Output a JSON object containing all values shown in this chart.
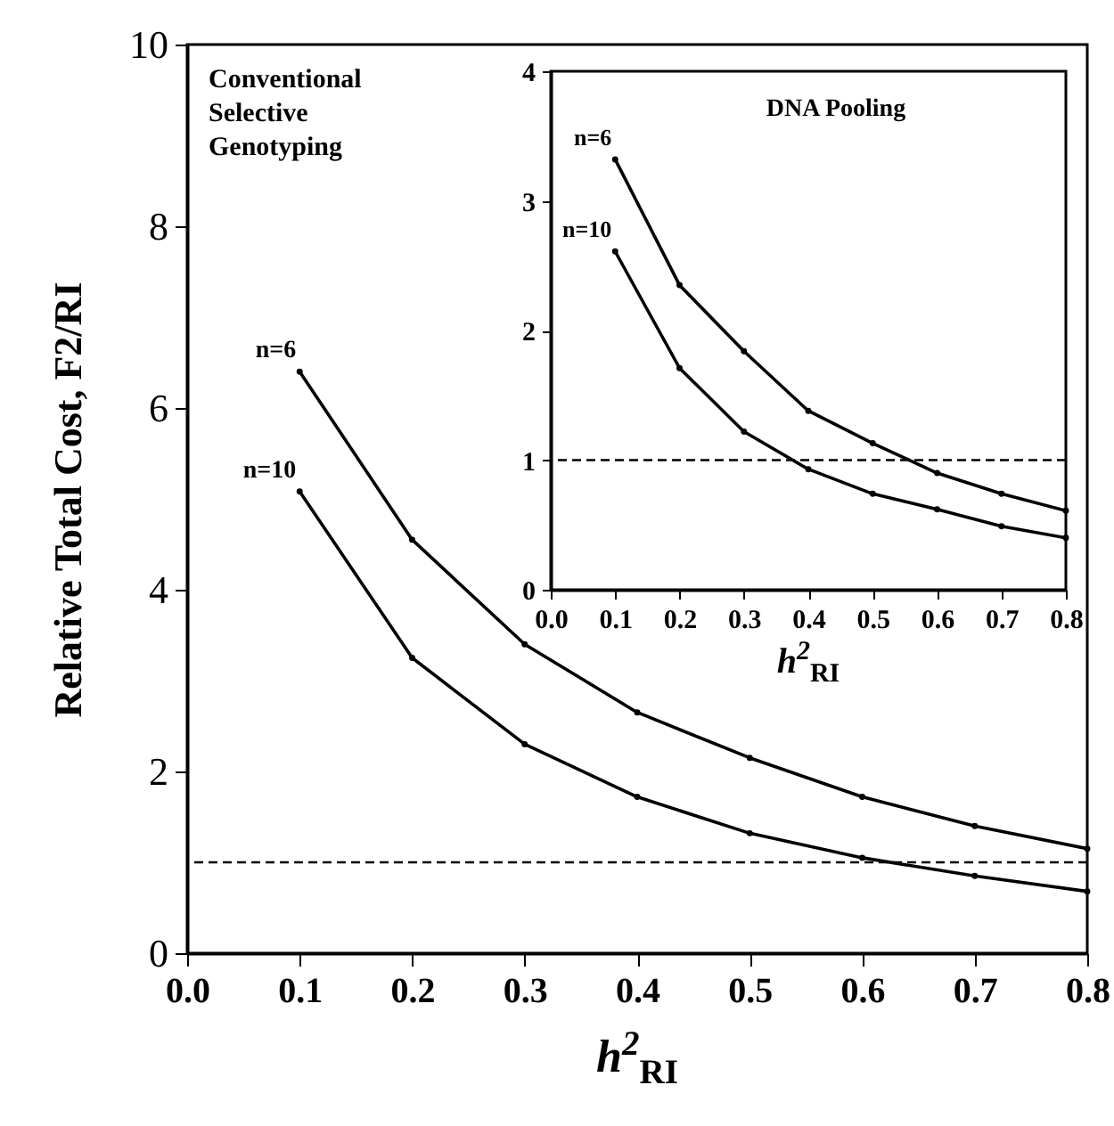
{
  "chart_data": [
    {
      "type": "line",
      "title": "Conventional\nSelective\nGenotyping",
      "xlabel": "h$^{2}$$_{RI}$",
      "ylabel": "Relative Total Cost, F2/RI",
      "x": [
        0.1,
        0.2,
        0.3,
        0.4,
        0.5,
        0.6,
        0.7,
        0.8
      ],
      "series": [
        {
          "name": "n=6",
          "color": "#000000",
          "values": [
            6.4,
            4.55,
            3.4,
            2.65,
            2.15,
            1.72,
            1.4,
            1.15
          ]
        },
        {
          "name": "n=10",
          "color": "#000000",
          "values": [
            5.08,
            3.25,
            2.3,
            1.72,
            1.32,
            1.05,
            0.85,
            0.68
          ]
        }
      ],
      "xlim": [
        0,
        0.8
      ],
      "xticks": [
        {
          "value": 0,
          "label": "0.0"
        },
        {
          "value": 0.1,
          "label": "0.1"
        },
        {
          "value": 0.2,
          "label": "0.2"
        },
        {
          "value": 0.3,
          "label": "0.3"
        },
        {
          "value": 0.4,
          "label": "0.4"
        },
        {
          "value": 0.5,
          "label": "0.5"
        },
        {
          "value": 0.6,
          "label": "0.6"
        },
        {
          "value": 0.7,
          "label": "0.7"
        },
        {
          "value": 0.8,
          "label": "0.8"
        }
      ],
      "ylim": [
        0,
        10
      ],
      "yticks": [
        0,
        2,
        4,
        6,
        8,
        10
      ],
      "ref_lines": [
        {
          "axis": "y",
          "value": 1,
          "line_style": "dashed"
        }
      ],
      "marker": "circle",
      "line_style": "solid",
      "grid": false,
      "legend": false
    },
    {
      "type": "line",
      "title": "DNA Pooling",
      "xlabel": "h$^{2}$$_{RI}$",
      "x": [
        0.1,
        0.2,
        0.3,
        0.4,
        0.5,
        0.6,
        0.7,
        0.8
      ],
      "series": [
        {
          "name": "n=6",
          "color": "#000000",
          "values": [
            3.32,
            2.35,
            1.84,
            1.38,
            1.13,
            0.9,
            0.74,
            0.61
          ]
        },
        {
          "name": "n=10",
          "color": "#000000",
          "values": [
            2.61,
            1.71,
            1.22,
            0.93,
            0.74,
            0.62,
            0.49,
            0.4
          ]
        }
      ],
      "xlim": [
        0,
        0.8
      ],
      "xticks": [
        {
          "value": 0,
          "label": "0.0"
        },
        {
          "value": 0.1,
          "label": "0.1"
        },
        {
          "value": 0.2,
          "label": "0.2"
        },
        {
          "value": 0.3,
          "label": "0.3"
        },
        {
          "value": 0.4,
          "label": "0.4"
        },
        {
          "value": 0.5,
          "label": "0.5"
        },
        {
          "value": 0.6,
          "label": "0.6"
        },
        {
          "value": 0.7,
          "label": "0.7"
        },
        {
          "value": 0.8,
          "label": "0.8"
        }
      ],
      "ylim": [
        0,
        4
      ],
      "yticks": [
        0,
        1,
        2,
        3,
        4
      ],
      "ref_lines": [
        {
          "axis": "y",
          "value": 1,
          "line_style": "dashed"
        }
      ],
      "marker": "circle",
      "line_style": "solid",
      "grid": false,
      "legend": false
    }
  ]
}
